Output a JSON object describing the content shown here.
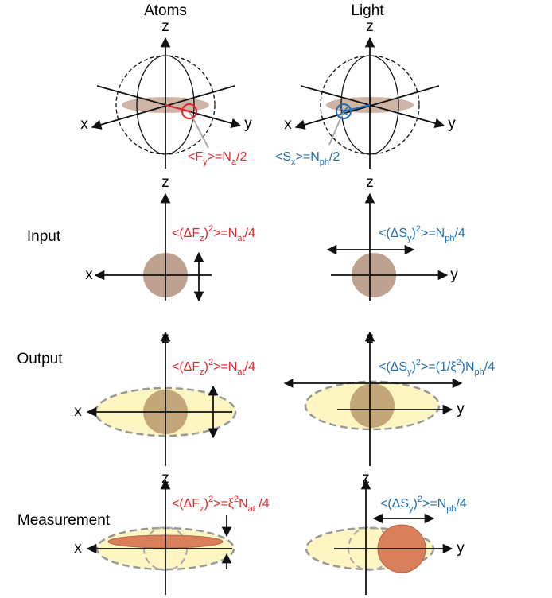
{
  "titles": {
    "atoms": "Atoms",
    "light": "Light"
  },
  "rows": [
    "Input",
    "Output",
    "Measurement"
  ],
  "axes": {
    "x": "x",
    "y": "y",
    "z": "z"
  },
  "formulas": {
    "top_atoms": [
      "<F",
      "y",
      ">=N",
      "a",
      "/2"
    ],
    "top_light": [
      "<S",
      "x",
      ">=N",
      "ph",
      "/2"
    ],
    "input_atoms": [
      "<(ΔF",
      "z",
      ")",
      "2",
      ">=N",
      "at",
      "/4"
    ],
    "input_light": [
      "<(ΔS",
      "y",
      ")",
      "2",
      ">=N",
      "ph",
      "/4"
    ],
    "output_atoms": [
      "<(ΔF",
      "z",
      ")",
      "2",
      ">=N",
      "at",
      "/4"
    ],
    "output_light": [
      "<(ΔS",
      "y",
      ")",
      "2",
      ">=(1/ξ",
      "2",
      ")N",
      "ph",
      "/4"
    ],
    "meas_atoms": [
      "<(ΔF",
      "z",
      ")",
      "2",
      ">=ξ",
      "2",
      "N",
      "at",
      " /4"
    ],
    "meas_light": [
      "<(ΔS",
      "y",
      ")",
      "2",
      ">=N",
      "ph",
      "/4"
    ]
  }
}
